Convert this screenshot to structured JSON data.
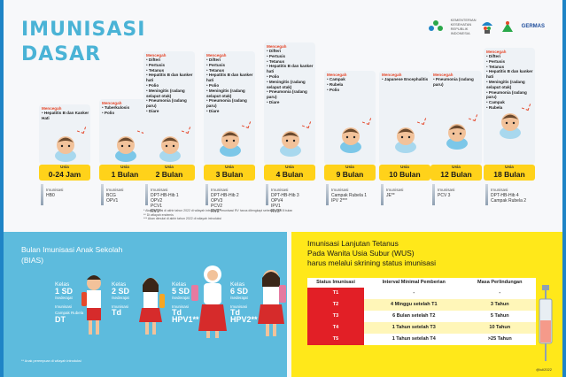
{
  "title": {
    "line1": "IMUNISASI",
    "line2": "DASAR"
  },
  "logos": {
    "kemenkes": "KEMENTERIAN KESEHATAN REPUBLIK INDONESIA",
    "germas": "GERMAS"
  },
  "prevent_label": "Mencegah",
  "immunization_label": "Imunisasi",
  "usia_label": "Usia",
  "columns": [
    {
      "age": "0-24 Jam",
      "prevents": [
        "Hepatitis B dan Kanker Hati"
      ],
      "vaccines": [
        "HB0"
      ]
    },
    {
      "age": "1 Bulan",
      "prevents": [
        "Tuberkulosis",
        "Polio"
      ],
      "vaccines": [
        "BCG",
        "OPV1"
      ]
    },
    {
      "age": "2 Bulan",
      "prevents": [
        "Difteri",
        "Pertusis",
        "Tetanus",
        "Hepatitis B dan kanker hati",
        "Polio",
        "Meningitis (radang selaput otak)",
        "Pneumonia (radang paru)",
        "Diare"
      ],
      "vaccines": [
        "DPT-HB-Hib 1",
        "OPV2",
        "PCV1",
        "RV1*"
      ]
    },
    {
      "age": "3 Bulan",
      "prevents": [
        "Difteri",
        "Pertusis",
        "Tetanus",
        "Hepatitis B dan kanker hati",
        "Polio",
        "Meningitis (radang selaput otak)",
        "Pneumonia (radang paru)",
        "Diare"
      ],
      "vaccines": [
        "DPT-HB-Hib 2",
        "OPV3",
        "PCV2",
        "RV2*"
      ]
    },
    {
      "age": "4 Bulan",
      "prevents": [
        "Difteri",
        "Pertusis",
        "Tetanus",
        "Hepatitis B dan kanker hati",
        "Polio",
        "Meningitis (radang selaput otak)",
        "Pneumonia (radang paru)",
        "Diare"
      ],
      "vaccines": [
        "DPT-HB-Hib 3",
        "OPV4",
        "IPV1",
        "RV3*"
      ]
    },
    {
      "age": "9 Bulan",
      "prevents": [
        "Campak",
        "Rubela",
        "Polio"
      ],
      "vaccines": [
        "Campak Rubela 1",
        "IPV 2***"
      ]
    },
    {
      "age": "10 Bulan",
      "prevents": [
        "Japanese Encephalitis"
      ],
      "vaccines": [
        "JE**"
      ]
    },
    {
      "age": "12 Bulan",
      "prevents": [
        "Pneumonia (radang paru)"
      ],
      "vaccines": [
        "PCV 3"
      ]
    },
    {
      "age": "18 Bulan",
      "prevents": [
        "Difteri",
        "Pertusis",
        "Tetanus",
        "Hepatitis B dan kanker hati",
        "Meningitis (radang selaput otak)",
        "Pneumonia (radang paru)",
        "Campak",
        "Rubela"
      ],
      "vaccines": [
        "DPT-HB-Hib 4",
        "Campak Rubela 2"
      ]
    }
  ],
  "notes": [
    "* Akan dimulai di akhir tahun 2022 di wilayah introduksi. Imunisasi RV harus dilengkapi sebelum usia 8 bulan",
    "** Di wilayah endemis",
    "*** Akan dimulai di akhir tahun 2022 di wilayah introduksi"
  ],
  "bias": {
    "title": "Bulan Imunisasi Anak Sekolah",
    "subtitle": "(BIAS)",
    "kelas_label": "Kelas",
    "sederajat": "/sederajat",
    "groups": [
      {
        "grade": "1 SD",
        "vaccines": [
          "Campak Rubela",
          "DT"
        ]
      },
      {
        "grade": "2 SD",
        "vaccines": [
          "Td"
        ]
      },
      {
        "grade": "5 SD",
        "vaccines": [
          "Td",
          "HPV1**"
        ]
      },
      {
        "grade": "6 SD",
        "vaccines": [
          "Td",
          "HPV2**"
        ]
      }
    ],
    "footnote": "** Anak perempuan di wilayah introduksi"
  },
  "tetanus": {
    "title_line1": "Imunisasi Lanjutan Tetanus",
    "title_line2": "Pada Wanita Usia Subur (WUS)",
    "title_line3": "harus melalui skrining status imunisasi",
    "headers": [
      "Status Imunisasi",
      "Interval Minimal Pemberian",
      "Masa Perlindungan"
    ],
    "rows": [
      {
        "status": "T1",
        "interval": "-",
        "protection": "-"
      },
      {
        "status": "T2",
        "interval": "4 Minggu setelah T1",
        "protection": "3 Tahun"
      },
      {
        "status": "T3",
        "interval": "6 Bulan setelah T2",
        "protection": "5 Tahun"
      },
      {
        "status": "T4",
        "interval": "1 Tahun setelah T3",
        "protection": "10 Tahun"
      },
      {
        "status": "T5",
        "interval": "1 Tahun setelah T4",
        "protection": ">25 Tahun"
      }
    ],
    "credit": "@iuli2022"
  },
  "colors": {
    "title": "#4ab3d6",
    "age_badge": "#ffd21a",
    "bias_bg": "#5dbbdd",
    "tetanus_bg": "#ffe81a",
    "status_red": "#e21f26",
    "prevent_red": "#e5482b"
  }
}
